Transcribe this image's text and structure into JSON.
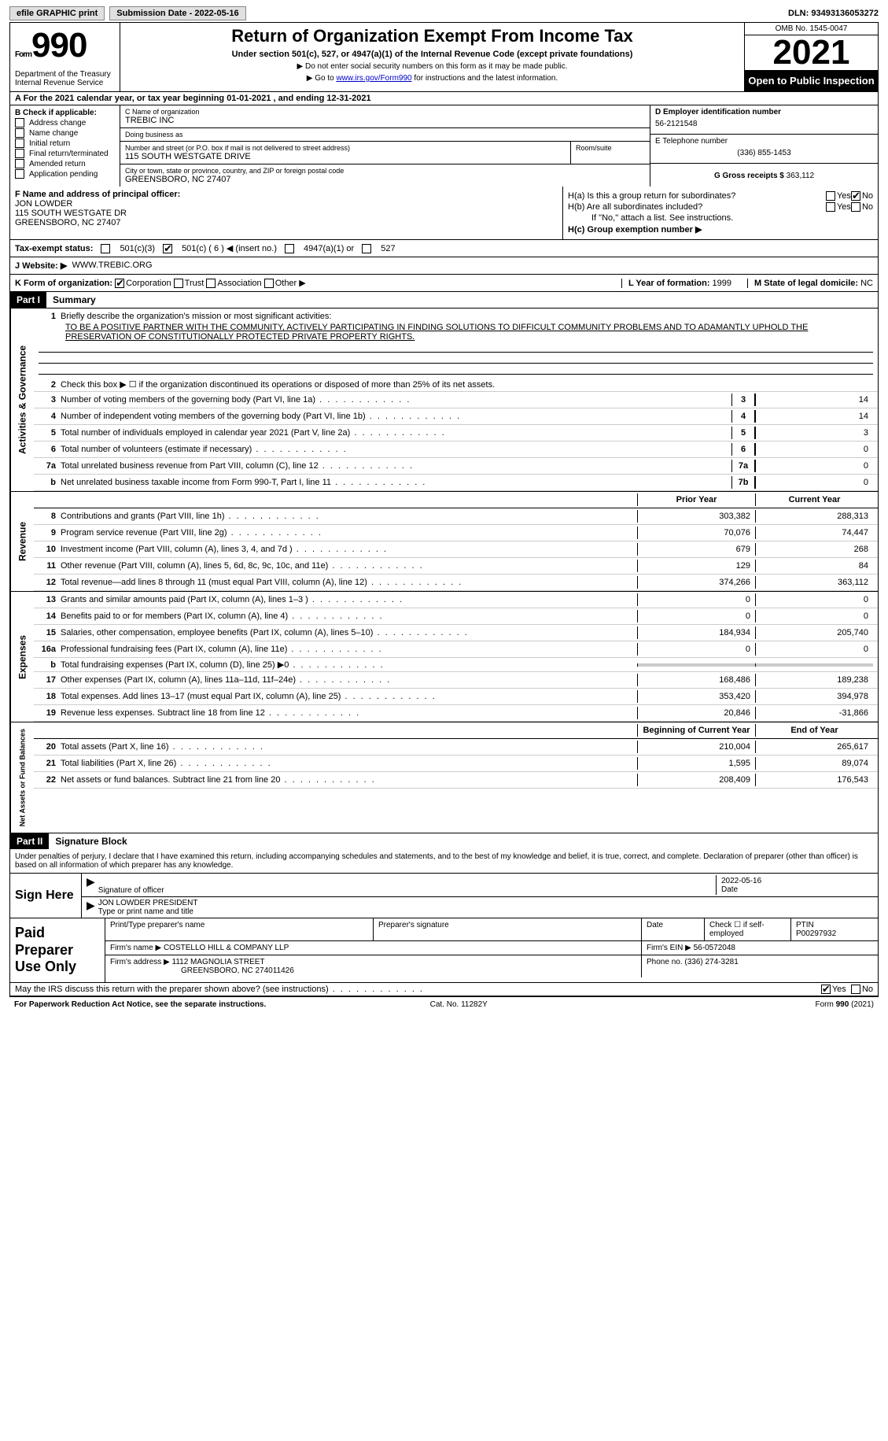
{
  "topbar": {
    "efile": "efile GRAPHIC print",
    "sub_lab": "Submission Date - ",
    "sub_date": "2022-05-16",
    "dln_lab": "DLN: ",
    "dln": "93493136053272"
  },
  "header": {
    "form_word": "Form",
    "form_num": "990",
    "dept": "Department of the Treasury\nInternal Revenue Service",
    "title": "Return of Organization Exempt From Income Tax",
    "sub1": "Under section 501(c), 527, or 4947(a)(1) of the Internal Revenue Code (except private foundations)",
    "sub2": "▶ Do not enter social security numbers on this form as it may be made public.",
    "sub3a": "▶ Go to ",
    "sub3_link": "www.irs.gov/Form990",
    "sub3b": " for instructions and the latest information.",
    "omb": "OMB No. 1545-0047",
    "year": "2021",
    "open": "Open to Public Inspection"
  },
  "row_a": "A For the 2021 calendar year, or tax year beginning 01-01-2021   , and ending 12-31-2021",
  "sec_b": {
    "hdr": "B Check if applicable:",
    "items": [
      "Address change",
      "Name change",
      "Initial return",
      "Final return/terminated",
      "Amended return",
      "Application pending"
    ]
  },
  "sec_c": {
    "name_lab": "C Name of organization",
    "name": "TREBIC INC",
    "dba_lab": "Doing business as",
    "dba": "",
    "addr_lab": "Number and street (or P.O. box if mail is not delivered to street address)",
    "addr": "115 SOUTH WESTGATE DRIVE",
    "room_lab": "Room/suite",
    "room": "",
    "city_lab": "City or town, state or province, country, and ZIP or foreign postal code",
    "city": "GREENSBORO, NC  27407"
  },
  "sec_de": {
    "d_lab": "D Employer identification number",
    "d": "56-2121548",
    "e_lab": "E Telephone number",
    "e": "(336) 855-1453",
    "g_lab": "G Gross receipts $ ",
    "g": "363,112"
  },
  "sec_f": {
    "lab": "F  Name and address of principal officer:",
    "name": "JON LOWDER",
    "addr1": "115 SOUTH WESTGATE DR",
    "addr2": "GREENSBORO, NC  27407"
  },
  "sec_h": {
    "a_lab": "H(a)  Is this a group return for subordinates?",
    "b_lab": "H(b)  Are all subordinates included?",
    "b_note": "If \"No,\" attach a list. See instructions.",
    "c_lab": "H(c)  Group exemption number ▶",
    "yes": "Yes",
    "no": "No"
  },
  "row_i": {
    "lab": "Tax-exempt status:",
    "o1": "501(c)(3)",
    "o2": "501(c) ( 6 ) ◀ (insert no.)",
    "o3": "4947(a)(1) or",
    "o4": "527"
  },
  "row_j": {
    "lab": "J   Website: ▶",
    "val": "WWW.TREBIC.ORG"
  },
  "row_k": {
    "lab": "K Form of organization:",
    "o1": "Corporation",
    "o2": "Trust",
    "o3": "Association",
    "o4": "Other ▶",
    "l_lab": "L Year of formation: ",
    "l": "1999",
    "m_lab": "M State of legal domicile: ",
    "m": "NC"
  },
  "part1": {
    "tag": "Part I",
    "title": "Summary",
    "l1_lab": "Briefly describe the organization's mission or most significant activities:",
    "l1_txt": "TO BE A POSITIVE PARTNER WITH THE COMMUNITY, ACTIVELY PARTICIPATING IN FINDING SOLUTIONS TO DIFFICULT COMMUNITY PROBLEMS AND TO ADAMANTLY UPHOLD THE PRESERVATION OF CONSTITUTIONALLY PROTECTED PRIVATE PROPERTY RIGHTS.",
    "l2": "Check this box ▶ ☐  if the organization discontinued its operations or disposed of more than 25% of its net assets.",
    "vert_ag": "Activities & Governance",
    "vert_rev": "Revenue",
    "vert_exp": "Expenses",
    "vert_na": "Net Assets or Fund Balances",
    "prior": "Prior Year",
    "curr": "Current Year",
    "boy": "Beginning of Current Year",
    "eoy": "End of Year",
    "lines_gov": [
      {
        "n": "3",
        "t": "Number of voting members of the governing body (Part VI, line 1a)",
        "b": "3",
        "v": "14"
      },
      {
        "n": "4",
        "t": "Number of independent voting members of the governing body (Part VI, line 1b)",
        "b": "4",
        "v": "14"
      },
      {
        "n": "5",
        "t": "Total number of individuals employed in calendar year 2021 (Part V, line 2a)",
        "b": "5",
        "v": "3"
      },
      {
        "n": "6",
        "t": "Total number of volunteers (estimate if necessary)",
        "b": "6",
        "v": "0"
      },
      {
        "n": "7a",
        "t": "Total unrelated business revenue from Part VIII, column (C), line 12",
        "b": "7a",
        "v": "0"
      },
      {
        "n": "b",
        "t": "Net unrelated business taxable income from Form 990-T, Part I, line 11",
        "b": "7b",
        "v": "0"
      }
    ],
    "lines_rev": [
      {
        "n": "8",
        "t": "Contributions and grants (Part VIII, line 1h)",
        "p": "303,382",
        "c": "288,313"
      },
      {
        "n": "9",
        "t": "Program service revenue (Part VIII, line 2g)",
        "p": "70,076",
        "c": "74,447"
      },
      {
        "n": "10",
        "t": "Investment income (Part VIII, column (A), lines 3, 4, and 7d )",
        "p": "679",
        "c": "268"
      },
      {
        "n": "11",
        "t": "Other revenue (Part VIII, column (A), lines 5, 6d, 8c, 9c, 10c, and 11e)",
        "p": "129",
        "c": "84"
      },
      {
        "n": "12",
        "t": "Total revenue—add lines 8 through 11 (must equal Part VIII, column (A), line 12)",
        "p": "374,266",
        "c": "363,112"
      }
    ],
    "lines_exp": [
      {
        "n": "13",
        "t": "Grants and similar amounts paid (Part IX, column (A), lines 1–3 )",
        "p": "0",
        "c": "0"
      },
      {
        "n": "14",
        "t": "Benefits paid to or for members (Part IX, column (A), line 4)",
        "p": "0",
        "c": "0"
      },
      {
        "n": "15",
        "t": "Salaries, other compensation, employee benefits (Part IX, column (A), lines 5–10)",
        "p": "184,934",
        "c": "205,740"
      },
      {
        "n": "16a",
        "t": "Professional fundraising fees (Part IX, column (A), line 11e)",
        "p": "0",
        "c": "0"
      },
      {
        "n": "b",
        "t": "Total fundraising expenses (Part IX, column (D), line 25) ▶0",
        "p": "",
        "c": "",
        "shade": true
      },
      {
        "n": "17",
        "t": "Other expenses (Part IX, column (A), lines 11a–11d, 11f–24e)",
        "p": "168,486",
        "c": "189,238"
      },
      {
        "n": "18",
        "t": "Total expenses. Add lines 13–17 (must equal Part IX, column (A), line 25)",
        "p": "353,420",
        "c": "394,978"
      },
      {
        "n": "19",
        "t": "Revenue less expenses. Subtract line 18 from line 12",
        "p": "20,846",
        "c": "-31,866"
      }
    ],
    "lines_na": [
      {
        "n": "20",
        "t": "Total assets (Part X, line 16)",
        "p": "210,004",
        "c": "265,617"
      },
      {
        "n": "21",
        "t": "Total liabilities (Part X, line 26)",
        "p": "1,595",
        "c": "89,074"
      },
      {
        "n": "22",
        "t": "Net assets or fund balances. Subtract line 21 from line 20",
        "p": "208,409",
        "c": "176,543"
      }
    ]
  },
  "part2": {
    "tag": "Part II",
    "title": "Signature Block",
    "decl": "Under penalties of perjury, I declare that I have examined this return, including accompanying schedules and statements, and to the best of my knowledge and belief, it is true, correct, and complete. Declaration of preparer (other than officer) is based on all information of which preparer has any knowledge.",
    "sign_here": "Sign Here",
    "sig_of": "Signature of officer",
    "date_lab": "Date",
    "sig_date": "2022-05-16",
    "name_title": "JON LOWDER PRESIDENT",
    "type_lab": "Type or print name and title",
    "paid": "Paid Preparer Use Only",
    "pt_name_lab": "Print/Type preparer's name",
    "pt_sig_lab": "Preparer's signature",
    "pt_date_lab": "Date",
    "pt_check_lab": "Check ☐ if self-employed",
    "ptin_lab": "PTIN",
    "ptin": "P00297932",
    "firm_lab": "Firm's name    ▶",
    "firm": "COSTELLO HILL & COMPANY LLP",
    "ein_lab": "Firm's EIN ▶ ",
    "ein": "56-0572048",
    "firm_addr_lab": "Firm's address ▶",
    "firm_addr1": "1112 MAGNOLIA STREET",
    "firm_addr2": "GREENSBORO, NC  274011426",
    "phone_lab": "Phone no. ",
    "phone": "(336) 274-3281",
    "may_irs": "May the IRS discuss this return with the preparer shown above? (see instructions)",
    "yes": "Yes",
    "no": "No"
  },
  "footer": {
    "pra": "For Paperwork Reduction Act Notice, see the separate instructions.",
    "cat": "Cat. No. 11282Y",
    "form": "Form 990 (2021)"
  }
}
